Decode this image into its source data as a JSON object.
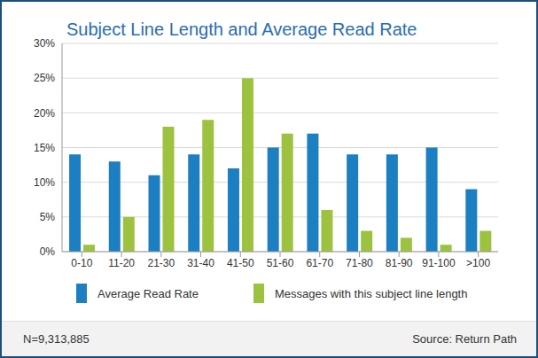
{
  "chart_data": {
    "type": "bar",
    "title": "Subject Line Length and Average Read Rate",
    "categories": [
      "0-10",
      "11-20",
      "21-30",
      "31-40",
      "41-50",
      "51-60",
      "61-70",
      "71-80",
      "81-90",
      "91-100",
      ">100"
    ],
    "series": [
      {
        "name": "Average Read Rate",
        "color": "#1b7fc1",
        "values": [
          14,
          13,
          11,
          14,
          12,
          15,
          17,
          14,
          14,
          15,
          9
        ]
      },
      {
        "name": "Messages with this subject line length",
        "color": "#9dc23f",
        "values": [
          1,
          5,
          18,
          19,
          25,
          17,
          6,
          3,
          2,
          1,
          3
        ]
      }
    ],
    "ylim": [
      0,
      30
    ],
    "yticks": [
      {
        "value": 0,
        "label": "0%"
      },
      {
        "value": 5,
        "label": "5%"
      },
      {
        "value": 10,
        "label": "10%"
      },
      {
        "value": 15,
        "label": "15%"
      },
      {
        "value": 20,
        "label": "20%"
      },
      {
        "value": 25,
        "label": "25%"
      },
      {
        "value": 30,
        "label": "30%"
      }
    ],
    "grid": true,
    "legend": "bottom",
    "annotations": [
      "N=9,313,885",
      "Source: Return Path"
    ]
  }
}
